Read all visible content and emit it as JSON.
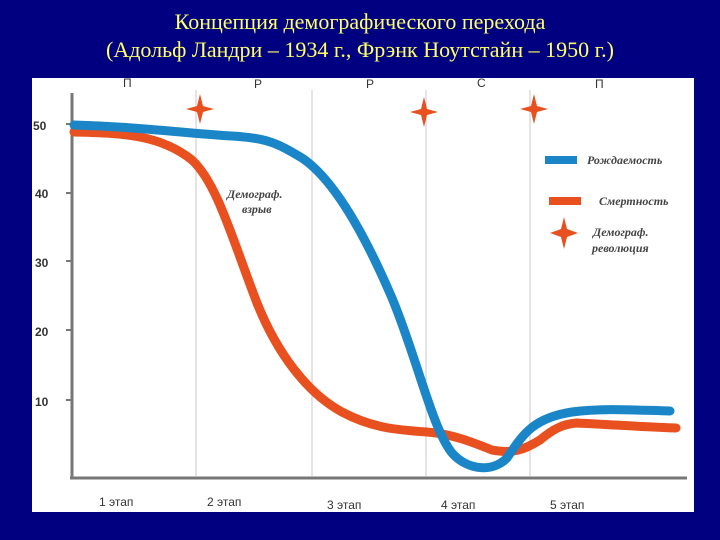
{
  "title": {
    "line1": "Концепция демографического перехода",
    "line2": "(Адольф Ландри – 1934 г., Фрэнк Ноутстайн – 1950 г.)"
  },
  "y_ticks": [
    "50",
    "40",
    "30",
    "20",
    "10"
  ],
  "phases": [
    "П",
    "Р",
    "Р",
    "С",
    "П"
  ],
  "stages": [
    "1 этап",
    "2 этап",
    "3 этап",
    "4 этап",
    "5 этап"
  ],
  "annotation": [
    "Демограф.",
    "взрыв"
  ],
  "legend": {
    "birth": "Рождаемость",
    "death": "Смертность",
    "revolution": [
      "Демограф.",
      "революция"
    ]
  },
  "colors": {
    "background": "#000080",
    "title": "#ffff66",
    "birth": "#1a86c8",
    "death": "#e8501f",
    "star": "#e8501f"
  },
  "icons": {
    "revolution_marker": "four-point-star-icon"
  }
}
